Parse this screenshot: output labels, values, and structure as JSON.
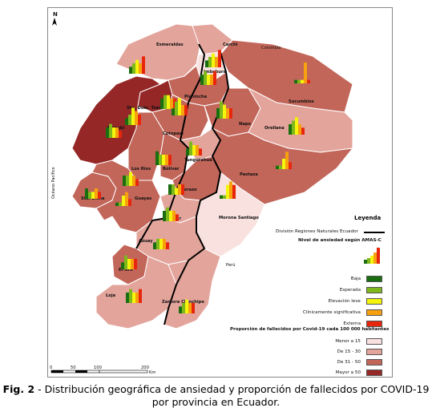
{
  "map": {
    "north_label": "N",
    "countries": {
      "colombia": "Colombia",
      "peru": "Perú",
      "ocean": "Océano Pacífico"
    },
    "provinces": [
      {
        "name": "Esmeraldas",
        "class": "15-30",
        "bars": [
          2,
          3,
          4,
          3,
          5
        ]
      },
      {
        "name": "Carchi",
        "class": "15-30",
        "bars": [
          2,
          3,
          4,
          3,
          5
        ]
      },
      {
        "name": "Imbabura",
        "class": "lt15",
        "bars": [
          3,
          4,
          3,
          3,
          4
        ]
      },
      {
        "name": "Sucumbíos",
        "class": "31-50",
        "bars": [
          1,
          1,
          1,
          6,
          1
        ]
      },
      {
        "name": "Pichincha",
        "class": "31-50",
        "bars": [
          3,
          4,
          4,
          3,
          3
        ]
      },
      {
        "name": "Sto. Dom. Tsáchilas",
        "class": "gt50",
        "bars": [
          2,
          3,
          5,
          4,
          3
        ]
      },
      {
        "name": "Manabí",
        "class": "gt50",
        "bars": [
          3,
          4,
          3,
          3,
          2
        ]
      },
      {
        "name": "Napo",
        "class": "31-50",
        "bars": [
          3,
          5,
          4,
          3,
          3
        ]
      },
      {
        "name": "Orellana",
        "class": "15-30",
        "bars": [
          3,
          4,
          5,
          3,
          2
        ]
      },
      {
        "name": "Cotopaxi",
        "class": "31-50",
        "bars": [
          2,
          4,
          5,
          3,
          3
        ]
      },
      {
        "name": "Los Ríos",
        "class": "31-50",
        "bars": [
          3,
          3,
          4,
          3,
          2
        ]
      },
      {
        "name": "Bolívar",
        "class": "31-50",
        "bars": [
          4,
          3,
          3,
          3,
          3
        ]
      },
      {
        "name": "Tungurahua",
        "class": "15-30",
        "bars": [
          2,
          4,
          3,
          3,
          2
        ]
      },
      {
        "name": "Pastaza",
        "class": "31-50",
        "bars": [
          1,
          1,
          3,
          5,
          2
        ]
      },
      {
        "name": "Sta. Elena",
        "class": "31-50",
        "bars": [
          3,
          2,
          2,
          3,
          2
        ]
      },
      {
        "name": "Guayas",
        "class": "31-50",
        "bars": [
          1,
          1,
          3,
          4,
          2
        ]
      },
      {
        "name": "Chimborazo",
        "class": "31-50",
        "bars": [
          3,
          3,
          2,
          3,
          3
        ]
      },
      {
        "name": "Cañar",
        "class": "15-30",
        "bars": [
          3,
          4,
          3,
          3,
          2
        ]
      },
      {
        "name": "Morona Santiago",
        "class": "lt15",
        "bars": [
          1,
          1,
          4,
          5,
          4
        ]
      },
      {
        "name": "Azuay",
        "class": "15-30",
        "bars": [
          2,
          3,
          3,
          3,
          2
        ]
      },
      {
        "name": "El Oro",
        "class": "31-50",
        "bars": [
          2,
          4,
          3,
          3,
          3
        ]
      },
      {
        "name": "Loja",
        "class": "15-30",
        "bars": [
          3,
          4,
          3,
          3,
          4
        ]
      },
      {
        "name": "Zamora Chinchipe",
        "class": "15-30",
        "bars": [
          2,
          3,
          4,
          3,
          3
        ]
      }
    ],
    "scale": {
      "ticks": [
        "0",
        "50",
        "100",
        "200"
      ],
      "unit": "Km"
    }
  },
  "legend": {
    "title": "Leyenda",
    "division_label": "División Regiones Naturales Ecuador",
    "anxiety_title": "Nivel de ansiedad según AMAS-C",
    "anxiety_levels": [
      {
        "label": "Baja",
        "color": "#1a6e0f"
      },
      {
        "label": "Esperada",
        "color": "#7fb81d"
      },
      {
        "label": "Elevación leve",
        "color": "#f4f40c"
      },
      {
        "label": "Clínicamente significativa",
        "color": "#f7a10f"
      },
      {
        "label": "Externa",
        "color": "#e8260c"
      }
    ],
    "deaths_title": "Proporción de fallecidos por Covid-19 cada 100 000 habitantes",
    "death_classes": [
      {
        "label": "Menor a 15",
        "color": "#f8e1df"
      },
      {
        "label": "De 15 - 30",
        "color": "#e3a49b"
      },
      {
        "label": "De 31 - 50",
        "color": "#c2665a"
      },
      {
        "label": "Mayor a 50",
        "color": "#952727"
      }
    ]
  },
  "caption": {
    "prefix": "Fig. 2",
    "text": " - Distribución geográfica de ansiedad y proporción de fallecidos por COVID-19 por provincia en Ecuador."
  }
}
